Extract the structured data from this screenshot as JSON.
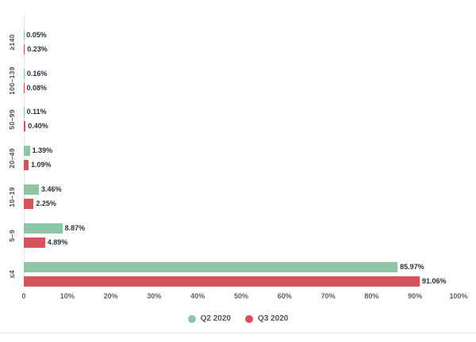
{
  "page": {
    "background": "#ffffff"
  },
  "chart_data": {
    "type": "bar",
    "orientation": "horizontal",
    "title": "",
    "xlabel": "",
    "ylabel": "",
    "categories": [
      "≥140",
      "100–139",
      "50–99",
      "20–49",
      "10–19",
      "5–9",
      "≤4"
    ],
    "series": [
      {
        "name": "Q2 2020",
        "color": "#8ec5a4",
        "values": [
          0.05,
          0.16,
          0.11,
          1.39,
          3.46,
          8.87,
          85.97
        ],
        "labels": [
          "0.05%",
          "0.16%",
          "0.11%",
          "1.39%",
          "3.46%",
          "8.87%",
          "85.97%"
        ]
      },
      {
        "name": "Q3 2020",
        "color": "#d7525a",
        "values": [
          0.23,
          0.08,
          0.4,
          1.09,
          2.25,
          4.89,
          91.06
        ],
        "labels": [
          "0.23%",
          "0.08%",
          "0.40%",
          "1.09%",
          "2.25%",
          "4.89%",
          "91.06%"
        ]
      }
    ],
    "xlim": [
      0,
      100
    ],
    "x_ticks": [
      "0",
      "10%",
      "20%",
      "30%",
      "40%",
      "50%",
      "60%",
      "70%",
      "80%",
      "90%",
      "100%"
    ],
    "grid": false,
    "legend": {
      "position": "bottom",
      "items": [
        {
          "label": "Q2 2020",
          "color": "#8ec5a4"
        },
        {
          "label": "Q3 2020",
          "color": "#d7525a"
        }
      ]
    }
  },
  "colors": {
    "axis_line": "#e4e7e9",
    "divider": "#e9e9e9",
    "value_label": "#263238",
    "category_label": "#4d4d4d",
    "tick_label": "#616161",
    "legend_label": "#555555"
  }
}
